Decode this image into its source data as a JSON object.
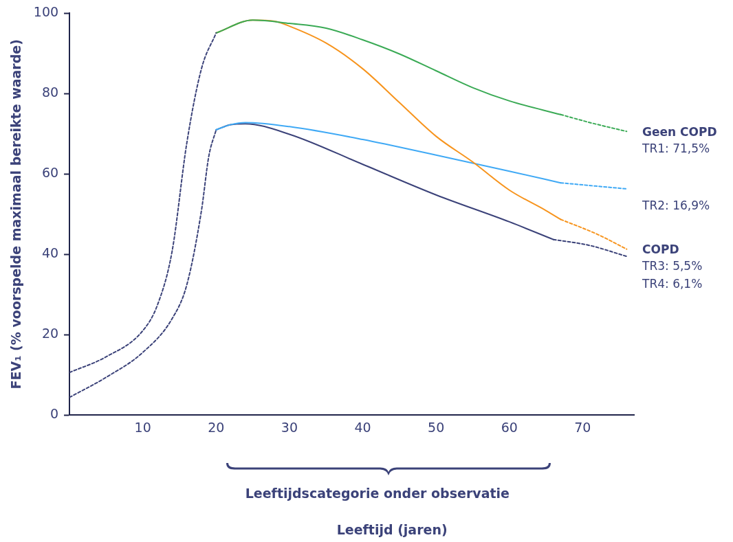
{
  "chart_data": {
    "type": "line",
    "ylabel": "FEV₁ (% voorspelde maximaal bereikte waarde)",
    "xlim": [
      0,
      77
    ],
    "xticks": [
      10,
      20,
      30,
      40,
      50,
      60,
      70
    ],
    "ylim": [
      0,
      100
    ],
    "yticks": [
      0,
      20,
      40,
      60,
      80,
      100
    ],
    "grid": false,
    "legend": false,
    "marker": "none",
    "annotations": [
      "Geen COPD",
      "COPD",
      "Leeftijdscategorie onder observatie",
      "Leeftijd (jaren)"
    ],
    "series": [
      {
        "color": "#3b4279",
        "line_style": "dashed",
        "x": [
          0,
          5,
          10,
          12,
          14,
          16,
          18,
          20
        ],
        "values": [
          10.6,
          14.5,
          21,
          27.4,
          40.8,
          67.7,
          86.2,
          95.1
        ]
      },
      {
        "color": "#3b4279",
        "line_style": "dashed",
        "x": [
          0,
          5,
          10,
          14,
          16,
          18,
          19,
          20
        ],
        "values": [
          4.4,
          9.4,
          15.6,
          24,
          32.4,
          50.9,
          64.4,
          71
        ]
      },
      {
        "color": "#3aaa55",
        "line_style": "solid",
        "x": [
          20,
          25,
          30,
          35,
          40,
          45,
          50,
          55,
          60,
          67
        ],
        "values": [
          95.1,
          98.3,
          97.5,
          96.3,
          93.4,
          89.9,
          85.7,
          81.5,
          78.2,
          74.8
        ]
      },
      {
        "color": "#f7941d",
        "line_style": "solid",
        "x": [
          20,
          25,
          28,
          30,
          35,
          40,
          45,
          50,
          55,
          60,
          65,
          67
        ],
        "values": [
          95.1,
          98.3,
          98,
          96.8,
          92.6,
          86.2,
          77.8,
          69.4,
          63,
          56,
          50.9,
          48.7
        ]
      },
      {
        "color": "#3fa9f5",
        "line_style": "solid",
        "x": [
          20,
          22,
          24,
          30,
          40,
          50,
          60,
          67
        ],
        "values": [
          71,
          72.3,
          72.8,
          71.8,
          68.6,
          64.7,
          60.7,
          57.8
        ]
      },
      {
        "color": "#3b4279",
        "line_style": "solid",
        "x": [
          20,
          22,
          24,
          30,
          40,
          50,
          60,
          66
        ],
        "values": [
          71,
          72.3,
          72.5,
          69.9,
          62.4,
          54.8,
          48.1,
          43.7
        ]
      },
      {
        "name": "TR1: 71,5%",
        "color": "#3aaa55",
        "line_style": "dashed",
        "x": [
          67,
          71,
          76
        ],
        "values": [
          74.8,
          72.8,
          70.6
        ]
      },
      {
        "name": "TR2: 16,9%",
        "color": "#3fa9f5",
        "line_style": "dashed",
        "x": [
          67,
          76
        ],
        "values": [
          57.8,
          56.3
        ]
      },
      {
        "name": "TR3: 5,5%",
        "color": "#f7941d",
        "line_style": "dashed",
        "x": [
          67,
          72,
          76
        ],
        "values": [
          48.7,
          45,
          41.3
        ]
      },
      {
        "name": "TR4: 6,1%",
        "color": "#3b4279",
        "line_style": "dashed",
        "x": [
          66,
          71,
          76
        ],
        "values": [
          43.7,
          42.2,
          39.5
        ]
      }
    ]
  }
}
